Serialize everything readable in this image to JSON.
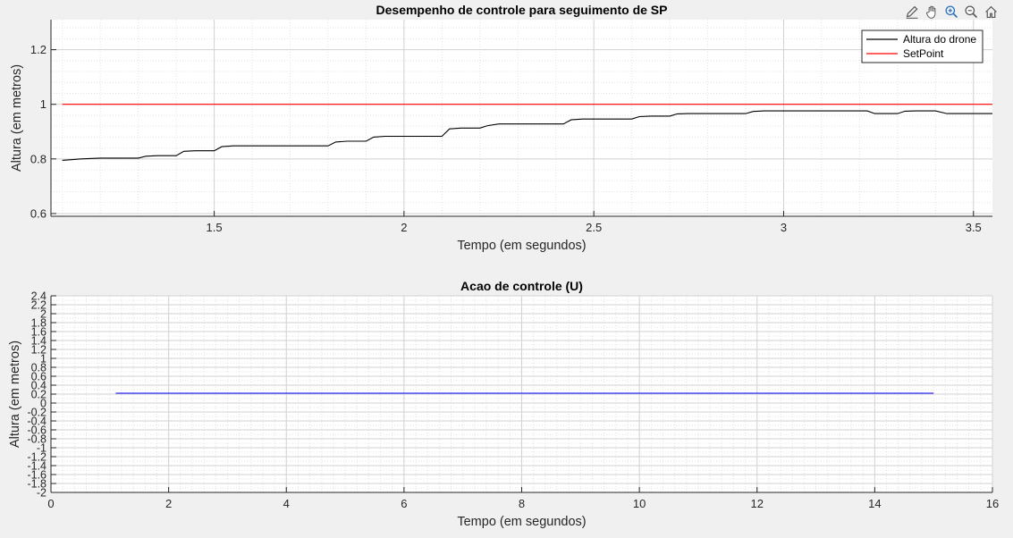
{
  "toolbar": {
    "icons": [
      "edit-icon",
      "pan-hand-icon",
      "zoom-in-icon",
      "zoom-out-icon",
      "home-icon"
    ]
  },
  "chart_data": [
    {
      "type": "line",
      "title": "Desempenho de controle para seguimento de SP",
      "xlabel": "Tempo (em segundos)",
      "ylabel": "Altura (em metros)",
      "xlim": [
        1.07,
        3.55
      ],
      "ylim": [
        0.59,
        1.31
      ],
      "xticks": [
        1.5,
        2,
        2.5,
        3,
        3.5
      ],
      "xtick_labels": [
        "1.5",
        "2",
        "2.5",
        "3",
        "3.5"
      ],
      "yticks": [
        0.6,
        0.8,
        1,
        1.2
      ],
      "ytick_labels": [
        "0.6",
        "0.8",
        "1",
        "1.2"
      ],
      "grid": true,
      "minor_grid": true,
      "legend": "top-right",
      "series": [
        {
          "name": "Altura do drone",
          "color": "#000000",
          "x": [
            1.1,
            1.15,
            1.2,
            1.3,
            1.32,
            1.35,
            1.4,
            1.42,
            1.45,
            1.5,
            1.52,
            1.55,
            1.6,
            1.8,
            1.82,
            1.85,
            1.9,
            1.92,
            1.95,
            2.0,
            2.1,
            2.12,
            2.15,
            2.2,
            2.22,
            2.25,
            2.3,
            2.42,
            2.44,
            2.47,
            2.5,
            2.6,
            2.62,
            2.65,
            2.7,
            2.72,
            2.75,
            2.8,
            2.9,
            2.92,
            2.95,
            3.0,
            3.1,
            3.22,
            3.24,
            3.27,
            3.3,
            3.32,
            3.35,
            3.4,
            3.43,
            3.46,
            3.5,
            3.55
          ],
          "y": [
            0.795,
            0.8,
            0.803,
            0.803,
            0.81,
            0.812,
            0.812,
            0.828,
            0.83,
            0.83,
            0.845,
            0.848,
            0.848,
            0.848,
            0.862,
            0.865,
            0.865,
            0.88,
            0.883,
            0.883,
            0.883,
            0.91,
            0.913,
            0.913,
            0.922,
            0.928,
            0.928,
            0.928,
            0.943,
            0.946,
            0.946,
            0.946,
            0.955,
            0.957,
            0.957,
            0.965,
            0.966,
            0.966,
            0.966,
            0.974,
            0.976,
            0.976,
            0.976,
            0.976,
            0.966,
            0.966,
            0.966,
            0.975,
            0.976,
            0.976,
            0.966,
            0.966,
            0.966,
            0.966
          ]
        },
        {
          "name": "SetPoint",
          "color": "#ff0000",
          "x": [
            1.1,
            3.55
          ],
          "y": [
            1,
            1
          ]
        }
      ]
    },
    {
      "type": "line",
      "title": "Acao de controle (U)",
      "xlabel": "Tempo (em segundos)",
      "ylabel": "Altura (em metros)",
      "xlim": [
        0,
        16
      ],
      "ylim": [
        -2,
        2.4
      ],
      "xticks": [
        0,
        2,
        4,
        6,
        8,
        10,
        12,
        14,
        16
      ],
      "xtick_labels": [
        "0",
        "2",
        "4",
        "6",
        "8",
        "10",
        "12",
        "14",
        "16"
      ],
      "yticks": [
        -2,
        -1.8,
        -1.6,
        -1.4,
        -1.2,
        -1,
        -0.8,
        -0.6,
        -0.4,
        -0.2,
        0,
        0.2,
        0.4,
        0.6,
        0.8,
        1,
        1.2,
        1.4,
        1.6,
        1.8,
        2,
        2.2,
        2.4
      ],
      "ytick_labels": [
        "-2",
        "-1.8",
        "-1.6",
        "-1.4",
        "-1.2",
        "-1",
        "-0.8",
        "-0.6",
        "-0.4",
        "-0.2",
        "0",
        "0.2",
        "0.4",
        "0.6",
        "0.8",
        "1",
        "1.2",
        "1.4",
        "1.6",
        "1.8",
        "2",
        "2.2",
        "2.4"
      ],
      "grid": true,
      "minor_grid": true,
      "series": [
        {
          "color": "#0000ff",
          "x": [
            1.1,
            15.0
          ],
          "y": [
            0.22,
            0.22
          ]
        }
      ]
    }
  ]
}
